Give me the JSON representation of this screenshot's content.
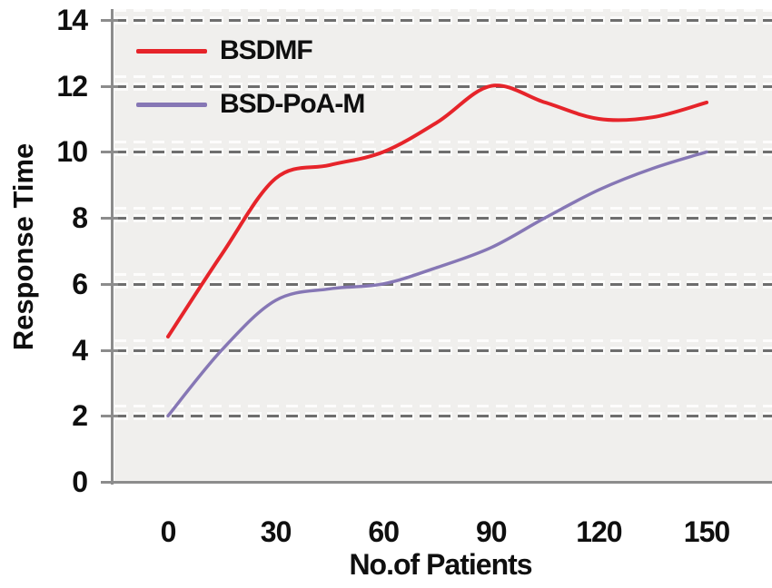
{
  "figure": {
    "background": "#ffffff",
    "plot_background": "#f0efed",
    "axis_color": "#8c8c8c",
    "grid_color": "#6e6e6e",
    "text_color": "#0f0f0f"
  },
  "chart_data": {
    "type": "line",
    "title": "",
    "xlabel": "No.of Patients",
    "ylabel": "Response Time",
    "x": [
      0,
      15,
      30,
      45,
      60,
      75,
      90,
      105,
      120,
      135,
      150
    ],
    "xticks": [
      0,
      30,
      60,
      90,
      120,
      150
    ],
    "yticks": [
      0,
      2,
      4,
      6,
      8,
      10,
      12,
      14
    ],
    "xlim": [
      0,
      168
    ],
    "ylim": [
      0,
      14.3
    ],
    "grid": "horizontal-dashed",
    "line_style": "smooth",
    "legend_position": "top-left-inside",
    "series": [
      {
        "name": "BSDMF",
        "color": "#e6242a",
        "stroke_width": 4,
        "values": [
          4.4,
          6.9,
          9.2,
          9.6,
          10.0,
          10.9,
          12.0,
          11.5,
          11.0,
          11.05,
          11.5
        ]
      },
      {
        "name": "BSD-PoA-M",
        "color": "#8677b5",
        "stroke_width": 3.5,
        "values": [
          2.0,
          4.0,
          5.5,
          5.85,
          6.0,
          6.5,
          7.1,
          8.0,
          8.85,
          9.5,
          10.0
        ]
      }
    ]
  }
}
